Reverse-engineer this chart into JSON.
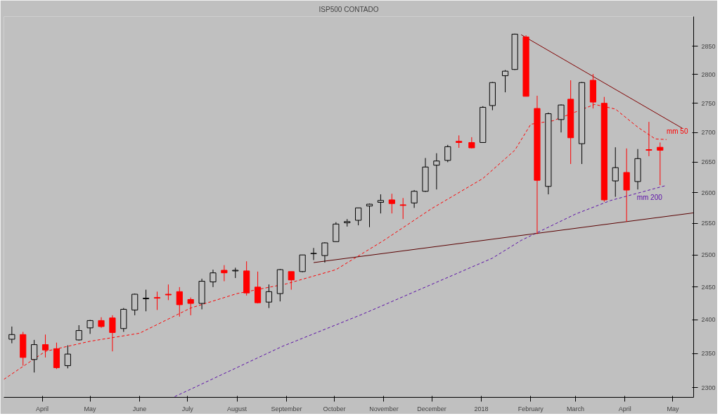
{
  "chart_data": {
    "type": "candlestick",
    "title": "ISP500 CONTADO",
    "log": true,
    "grid": false,
    "colors": [
      "#000000",
      "#ff0000",
      "#000000",
      "#ff0000",
      "#ff0000",
      "#000000",
      "#000000",
      "#000000",
      "#ff0000",
      "#ff0000",
      "#000000",
      "#000000",
      "#000000",
      "#ff0000",
      "#ff0000",
      "#ff0000",
      "#ff0000",
      "#000000",
      "#000000",
      "#ff0000",
      "#000000",
      "#ff0000",
      "#ff0000",
      "#000000",
      "#000000",
      "#ff0000",
      "#000000",
      "#000000",
      "#000000",
      "#000000",
      "#000000",
      "#000000",
      "#000000",
      "#000000",
      "#ff0000",
      "#ff0000",
      "#000000",
      "#000000",
      "#000000",
      "#000000",
      "#ff0000",
      "#ff0000",
      "#000000",
      "#000000",
      "#000000",
      "#000000",
      "#ff0000",
      "#ff0000",
      "#000000",
      "#000000",
      "#ff0000",
      "#000000",
      "#ff0000",
      "#ff0000",
      "#000000",
      "#ff0000",
      "#000000",
      "#ff0000",
      "#ff0000"
    ],
    "x": [
      "2017-03-13",
      "2017-03-20",
      "2017-03-27",
      "2017-04-03",
      "2017-04-10",
      "2017-04-17",
      "2017-04-24",
      "2017-05-01",
      "2017-05-08",
      "2017-05-15",
      "2017-05-22",
      "2017-05-29",
      "2017-06-05",
      "2017-06-12",
      "2017-06-19",
      "2017-06-26",
      "2017-07-03",
      "2017-07-10",
      "2017-07-17",
      "2017-07-24",
      "2017-07-31",
      "2017-08-07",
      "2017-08-14",
      "2017-08-21",
      "2017-08-28",
      "2017-09-04",
      "2017-09-11",
      "2017-09-18",
      "2017-09-25",
      "2017-10-02",
      "2017-10-09",
      "2017-10-16",
      "2017-10-23",
      "2017-10-30",
      "2017-11-06",
      "2017-11-13",
      "2017-11-20",
      "2017-11-27",
      "2017-12-04",
      "2017-12-11",
      "2017-12-18",
      "2017-12-26",
      "2018-01-02",
      "2018-01-08",
      "2018-01-16",
      "2018-01-22",
      "2018-01-29",
      "2018-02-05",
      "2018-02-12",
      "2018-02-20",
      "2018-02-26",
      "2018-03-05",
      "2018-03-12",
      "2018-03-19",
      "2018-03-26",
      "2018-04-02",
      "2018-04-09",
      "2018-04-16",
      "2018-04-23"
    ],
    "ohlc": [
      [
        2371,
        2390,
        2365,
        2378
      ],
      [
        2378,
        2382,
        2332,
        2344
      ],
      [
        2341,
        2370,
        2322,
        2363
      ],
      [
        2363,
        2378,
        2344,
        2355
      ],
      [
        2357,
        2366,
        2327,
        2329
      ],
      [
        2332,
        2362,
        2328,
        2349
      ],
      [
        2370,
        2392,
        2369,
        2384
      ],
      [
        2388,
        2400,
        2379,
        2399
      ],
      [
        2399,
        2404,
        2388,
        2390
      ],
      [
        2403,
        2407,
        2353,
        2381
      ],
      [
        2387,
        2418,
        2382,
        2416
      ],
      [
        2415,
        2440,
        2407,
        2439
      ],
      [
        2432,
        2446,
        2413,
        2433
      ],
      [
        2434,
        2443,
        2415,
        2433
      ],
      [
        2439,
        2454,
        2430,
        2438
      ],
      [
        2443,
        2450,
        2405,
        2423
      ],
      [
        2431,
        2434,
        2407,
        2425
      ],
      [
        2425,
        2463,
        2416,
        2459
      ],
      [
        2458,
        2477,
        2450,
        2472
      ],
      [
        2476,
        2484,
        2459,
        2472
      ],
      [
        2475,
        2480,
        2464,
        2476
      ],
      [
        2475,
        2490,
        2437,
        2441
      ],
      [
        2450,
        2474,
        2425,
        2426
      ],
      [
        2427,
        2454,
        2418,
        2443
      ],
      [
        2440,
        2478,
        2428,
        2477
      ],
      [
        2474,
        2474,
        2446,
        2461
      ],
      [
        2474,
        2500,
        2473,
        2500
      ],
      [
        2502,
        2511,
        2492,
        2502
      ],
      [
        2499,
        2520,
        2488,
        2519
      ],
      [
        2521,
        2552,
        2521,
        2549
      ],
      [
        2551,
        2557,
        2545,
        2553
      ],
      [
        2555,
        2575,
        2547,
        2575
      ],
      [
        2578,
        2582,
        2544,
        2581
      ],
      [
        2584,
        2597,
        2566,
        2587
      ],
      [
        2588,
        2598,
        2566,
        2582
      ],
      [
        2580,
        2591,
        2557,
        2579
      ],
      [
        2583,
        2604,
        2575,
        2602
      ],
      [
        2602,
        2657,
        2601,
        2642
      ],
      [
        2645,
        2665,
        2605,
        2652
      ],
      [
        2653,
        2679,
        2650,
        2676
      ],
      [
        2685,
        2695,
        2674,
        2683
      ],
      [
        2683,
        2692,
        2673,
        2674
      ],
      [
        2683,
        2745,
        2683,
        2743
      ],
      [
        2746,
        2787,
        2738,
        2786
      ],
      [
        2798,
        2808,
        2769,
        2806
      ],
      [
        2809,
        2873,
        2808,
        2872
      ],
      [
        2867,
        2870,
        2762,
        2762
      ],
      [
        2741,
        2763,
        2533,
        2620
      ],
      [
        2610,
        2734,
        2597,
        2732
      ],
      [
        2722,
        2748,
        2700,
        2747
      ],
      [
        2757,
        2790,
        2647,
        2691
      ],
      [
        2681,
        2787,
        2647,
        2786
      ],
      [
        2790,
        2801,
        2741,
        2752
      ],
      [
        2750,
        2761,
        2585,
        2588
      ],
      [
        2619,
        2675,
        2593,
        2641
      ],
      [
        2633,
        2673,
        2553,
        2604
      ],
      [
        2618,
        2672,
        2605,
        2656
      ],
      [
        2671,
        2718,
        2660,
        2670
      ],
      [
        2675,
        2683,
        2612,
        2670
      ]
    ],
    "series": [
      {
        "type": "line",
        "name": "mm 50",
        "color": "#ff0000",
        "line_style": "dashed",
        "x": [
          "2017-03-08",
          "2017-04-03",
          "2017-05-01",
          "2017-06-01",
          "2017-07-03",
          "2017-08-01",
          "2017-09-01",
          "2017-10-02",
          "2017-11-01",
          "2017-12-01",
          "2018-01-02",
          "2018-01-22",
          "2018-02-01",
          "2018-02-15",
          "2018-03-01",
          "2018-03-13",
          "2018-03-26",
          "2018-04-09",
          "2018-04-20",
          "2018-04-27"
        ],
        "values": [
          2312,
          2353,
          2368,
          2380,
          2418,
          2440,
          2455,
          2477,
          2523,
          2574,
          2623,
          2670,
          2714,
          2720,
          2735,
          2748,
          2740,
          2709,
          2689,
          2688
        ]
      },
      {
        "type": "line",
        "name": "mm 200",
        "color": "#5b0fa8",
        "line_style": "dashed",
        "x": [
          "2017-06-23",
          "2017-08-29",
          "2017-10-19",
          "2018-01-08",
          "2018-01-26",
          "2018-03-01",
          "2018-03-23",
          "2018-04-26"
        ],
        "values": [
          2287,
          2360,
          2409,
          2495,
          2523,
          2565,
          2587,
          2611
        ]
      },
      {
        "type": "line",
        "color": "#5a0000",
        "line_style": "solid",
        "x": [
          "2017-09-18",
          "2018-05-14"
        ],
        "values": [
          2488,
          2567
        ]
      },
      {
        "type": "line",
        "color": "#800000",
        "line_style": "solid",
        "x": [
          "2018-01-26",
          "2018-05-07"
        ],
        "values": [
          2871,
          2707
        ]
      }
    ],
    "xlim": [
      "2017-03-08",
      "2018-05-14"
    ],
    "xticks": [
      {
        "value": "2017-04-01",
        "label": "April"
      },
      {
        "value": "2017-05-01",
        "label": "May"
      },
      {
        "value": "2017-06-01",
        "label": "June"
      },
      {
        "value": "2017-07-01",
        "label": "July"
      },
      {
        "value": "2017-08-01",
        "label": "August"
      },
      {
        "value": "2017-09-01",
        "label": "September"
      },
      {
        "value": "2017-10-01",
        "label": "October"
      },
      {
        "value": "2017-11-01",
        "label": "November"
      },
      {
        "value": "2017-12-01",
        "label": "December"
      },
      {
        "value": "2018-01-01",
        "label": "2018"
      },
      {
        "value": "2018-02-01",
        "label": "February"
      },
      {
        "value": "2018-03-01",
        "label": "March"
      },
      {
        "value": "2018-04-01",
        "label": "April"
      },
      {
        "value": "2018-05-01",
        "label": "May"
      }
    ],
    "ylim": [
      2286,
      2904
    ],
    "yticks": [
      2300,
      2350,
      2400,
      2450,
      2500,
      2550,
      2600,
      2650,
      2700,
      2750,
      2800,
      2850
    ]
  }
}
